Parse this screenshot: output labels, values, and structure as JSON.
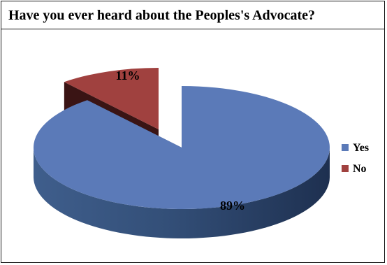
{
  "chart_data": {
    "type": "pie",
    "title": "Have you ever heard about the Peoples's Advocate?",
    "categories": [
      "Yes",
      "No"
    ],
    "values": [
      89,
      11
    ],
    "labels": [
      "89%",
      "11%"
    ],
    "colors": [
      "#5b7ab8",
      "#a0413f"
    ],
    "legend_position": "right",
    "style": "3d-exploded"
  }
}
